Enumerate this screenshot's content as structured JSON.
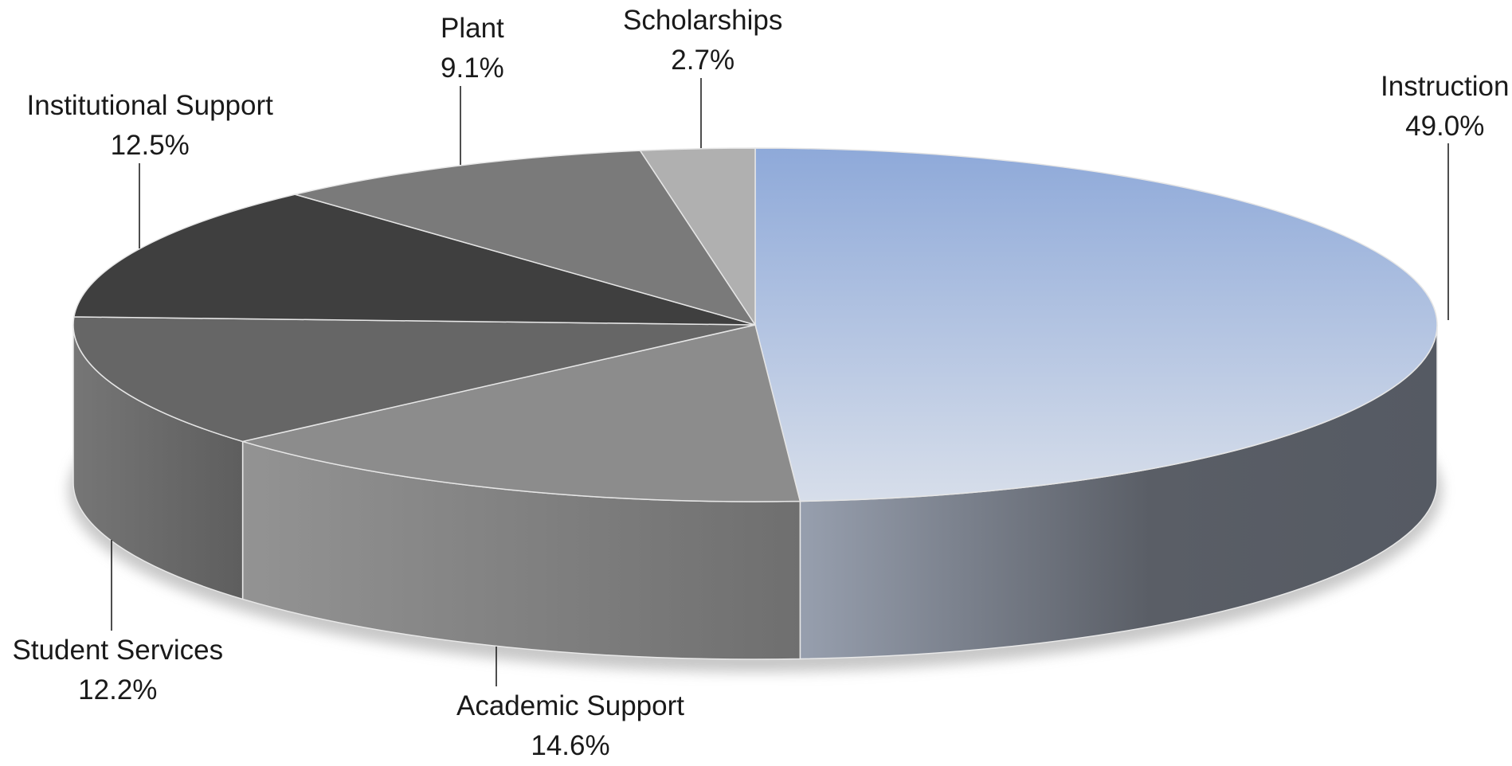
{
  "chart_data": {
    "type": "pie",
    "title": "",
    "style": "3d-tilted",
    "unit": "%",
    "slices": [
      {
        "label": "Instruction",
        "value": 49.0,
        "value_label": "49.0%",
        "color": "#8ea9d9"
      },
      {
        "label": "Academic Support",
        "value": 14.6,
        "value_label": "14.6%",
        "color": "#8c8c8c"
      },
      {
        "label": "Student Services",
        "value": 12.2,
        "value_label": "12.2%",
        "color": "#666666"
      },
      {
        "label": "Institutional Support",
        "value": 12.5,
        "value_label": "12.5%",
        "color": "#3f3f3f"
      },
      {
        "label": "Plant",
        "value": 9.1,
        "value_label": "9.1%",
        "color": "#7a7a7a"
      },
      {
        "label": "Scholarships",
        "value": 2.7,
        "value_label": "2.7%",
        "color": "#b0b0b0"
      }
    ],
    "legend": "none",
    "labels": "outside-with-leader-lines"
  }
}
